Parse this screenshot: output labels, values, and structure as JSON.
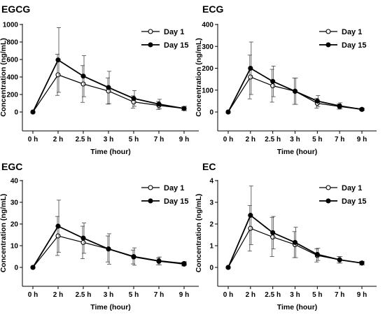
{
  "chart_data": [
    {
      "type": "line",
      "title": "EGCG",
      "xlabel": "Time (hour)",
      "ylabel": "Concentration (ng/mL)",
      "categories": [
        "0 h",
        "2 h",
        "2.5 h",
        "3 h",
        "5 h",
        "7 h",
        "9 h"
      ],
      "ylim": [
        0,
        1000
      ],
      "yticks": [
        "0",
        "200",
        "400",
        "600",
        "800",
        "1000"
      ],
      "legend_position": "top-right",
      "series": [
        {
          "name": "Day 1",
          "marker": "open-circle",
          "values": [
            0,
            425,
            320,
            240,
            115,
            75,
            40
          ],
          "errors": [
            0,
            235,
            210,
            150,
            70,
            45,
            20
          ]
        },
        {
          "name": "Day 15",
          "marker": "filled-circle",
          "values": [
            0,
            595,
            410,
            280,
            155,
            90,
            40
          ],
          "errors": [
            0,
            370,
            235,
            185,
            90,
            55,
            25
          ]
        }
      ]
    },
    {
      "type": "line",
      "title": "ECG",
      "xlabel": "Time (hour)",
      "ylabel": "Concentration (ng/mL)",
      "categories": [
        "0 h",
        "2 h",
        "2.5 h",
        "3 h",
        "5 h",
        "7 h",
        "9 h"
      ],
      "ylim": [
        0,
        400
      ],
      "yticks": [
        "0",
        "100",
        "200",
        "300",
        "400"
      ],
      "legend_position": "top-right",
      "series": [
        {
          "name": "Day 1",
          "marker": "open-circle",
          "values": [
            0,
            160,
            120,
            95,
            40,
            25,
            12
          ],
          "errors": [
            0,
            100,
            75,
            60,
            22,
            12,
            5
          ]
        },
        {
          "name": "Day 15",
          "marker": "filled-circle",
          "values": [
            0,
            200,
            140,
            95,
            50,
            28,
            12
          ],
          "errors": [
            0,
            120,
            70,
            60,
            25,
            14,
            5
          ]
        }
      ]
    },
    {
      "type": "line",
      "title": "EGC",
      "xlabel": "Time (hour)",
      "ylabel": "Concentration (ng/mL)",
      "categories": [
        "0 h",
        "2 h",
        "2.5 h",
        "3 h",
        "5 h",
        "7 h",
        "9 h"
      ],
      "ylim": [
        0,
        40
      ],
      "yticks": [
        "0",
        "10",
        "20",
        "30",
        "40"
      ],
      "legend_position": "top-right",
      "series": [
        {
          "name": "Day 1",
          "marker": "open-circle",
          "values": [
            0,
            14.5,
            11.5,
            8.5,
            4.8,
            2.8,
            1.5
          ],
          "errors": [
            0,
            9,
            7.5,
            6,
            3.2,
            1.6,
            0.8
          ]
        },
        {
          "name": "Day 15",
          "marker": "filled-circle",
          "values": [
            0,
            19,
            13.5,
            8.5,
            5,
            3,
            1.8
          ],
          "errors": [
            0,
            12,
            7,
            7,
            4,
            1.8,
            0.8
          ]
        }
      ]
    },
    {
      "type": "line",
      "title": "EC",
      "xlabel": "Time (hour)",
      "ylabel": "Concentration (ng/mL)",
      "categories": [
        "0 h",
        "2 h",
        "2.5 h",
        "3 h",
        "5 h",
        "7 h",
        "9 h"
      ],
      "ylim": [
        0,
        4
      ],
      "yticks": [
        "0",
        "1",
        "2",
        "3",
        "4"
      ],
      "legend_position": "top-right",
      "series": [
        {
          "name": "Day 1",
          "marker": "open-circle",
          "values": [
            0,
            1.8,
            1.4,
            1.05,
            0.55,
            0.35,
            0.2
          ],
          "errors": [
            0,
            1.05,
            0.9,
            0.6,
            0.3,
            0.15,
            0.08
          ]
        },
        {
          "name": "Day 15",
          "marker": "filled-circle",
          "values": [
            0,
            2.4,
            1.6,
            1.15,
            0.6,
            0.35,
            0.2
          ],
          "errors": [
            0,
            1.35,
            0.75,
            0.7,
            0.28,
            0.15,
            0.08
          ]
        }
      ]
    }
  ]
}
